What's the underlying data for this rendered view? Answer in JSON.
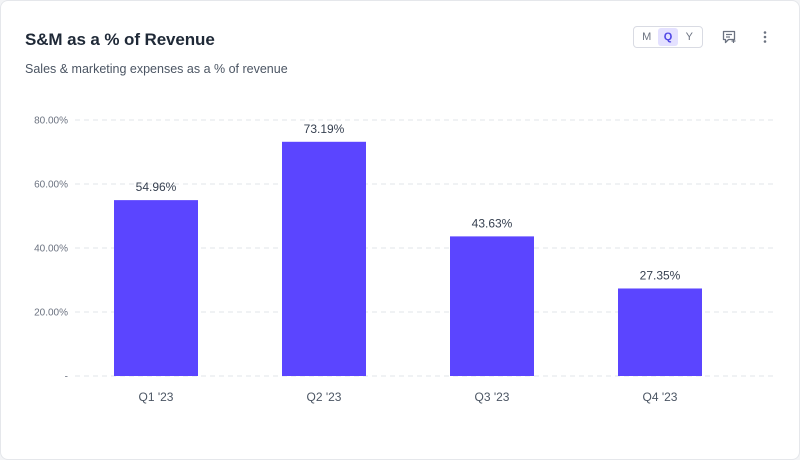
{
  "header": {
    "title": "S&M as a % of Revenue",
    "subtitle": "Sales & marketing expenses as a % of revenue"
  },
  "period_toggle": {
    "options": [
      "M",
      "Q",
      "Y"
    ],
    "selected": "Q"
  },
  "icons": {
    "comment": "comment-add-icon",
    "menu": "more-vertical-icon"
  },
  "colors": {
    "bar": "#5b45ff",
    "toggle_active_bg": "#e4e1ff",
    "toggle_active_text": "#4f46e5"
  },
  "chart_data": {
    "type": "bar",
    "categories": [
      "Q1 '23",
      "Q2 '23",
      "Q3 '23",
      "Q4 '23"
    ],
    "values": [
      54.96,
      73.19,
      43.63,
      27.35
    ],
    "value_labels": [
      "54.96%",
      "73.19%",
      "43.63%",
      "27.35%"
    ],
    "yticks": [
      0,
      20,
      40,
      60,
      80
    ],
    "ytick_labels": [
      "-",
      "20.00%",
      "40.00%",
      "60.00%",
      "80.00%"
    ],
    "ylim": [
      0,
      80
    ],
    "grid": true,
    "legend": "none"
  }
}
